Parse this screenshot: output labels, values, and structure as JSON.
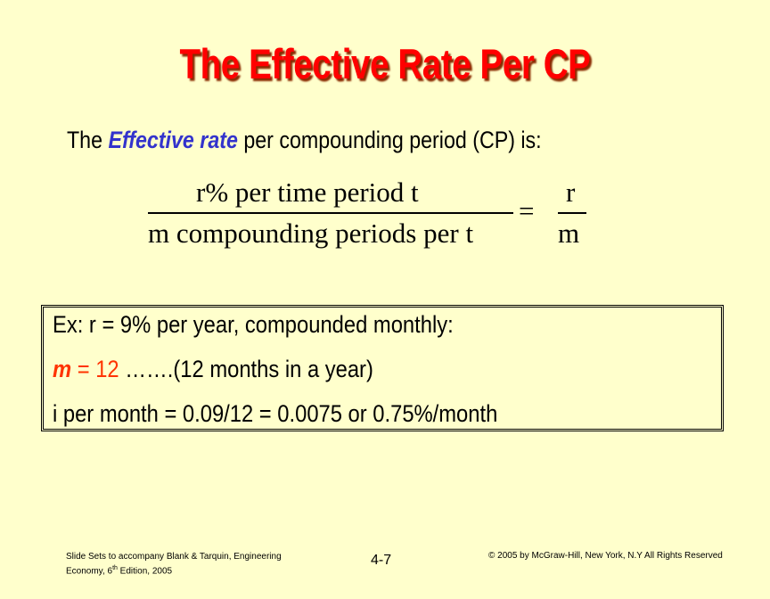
{
  "slide": {
    "title": "The Effective Rate Per CP",
    "intro": {
      "before": "The ",
      "emphasis": "Effective rate",
      "after": " per compounding period (CP) is:"
    },
    "formula": {
      "numerator_left": "r% per time period t",
      "denominator_left": "m compounding periods per t",
      "equals": "=",
      "numerator_right": "r",
      "denominator_right": "m"
    },
    "example": {
      "line1": "Ex: r = 9% per year, compounded monthly:",
      "line2_var": "m",
      "line2_eq": " = ",
      "line2_val": "12",
      "line2_rest": " …….(12 months in a year)",
      "line3": "i per month = 0.09/12 = 0.0075 or 0.75%/month"
    },
    "footer": {
      "left_line1": "Slide Sets  to accompany Blank & Tarquin, Engineering",
      "left_line2_a": "Economy, 6",
      "left_line2_sup": "th",
      "left_line2_b": " Edition, 2005",
      "page_number": "4-7",
      "copyright": "© 2005 by McGraw-Hill, New York, N.Y All Rights Reserved"
    }
  },
  "colors": {
    "background": "#ffffcc",
    "title": "#ff0000",
    "emphasis": "#3333cc",
    "highlight": "#ff3300"
  }
}
